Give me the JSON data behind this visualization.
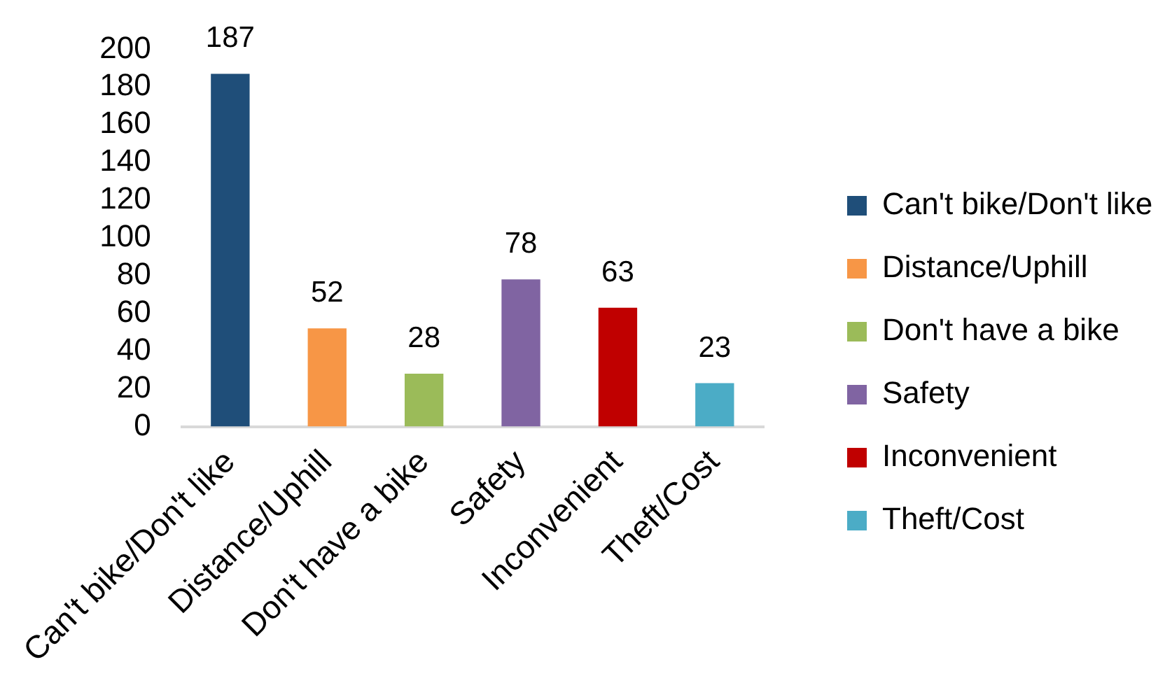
{
  "chart_data": {
    "type": "bar",
    "categories": [
      "Can't bike/Don't like",
      "Distance/Uphill",
      "Don't have a bike",
      "Safety",
      "Inconvenient",
      "Theft/Cost"
    ],
    "series": [
      {
        "name": "Can't bike/Don't like",
        "color": "#1f4e79",
        "values": [
          187,
          null,
          null,
          null,
          null,
          null
        ]
      },
      {
        "name": "Distance/Uphill",
        "color": "#f79646",
        "values": [
          null,
          52,
          null,
          null,
          null,
          null
        ]
      },
      {
        "name": "Don't have a bike",
        "color": "#9bbb59",
        "values": [
          null,
          null,
          28,
          null,
          null,
          null
        ]
      },
      {
        "name": "Safety",
        "color": "#8064a2",
        "values": [
          null,
          null,
          null,
          78,
          null,
          null
        ]
      },
      {
        "name": "Inconvenient",
        "color": "#c00000",
        "values": [
          null,
          null,
          null,
          null,
          63,
          null
        ]
      },
      {
        "name": "Theft/Cost",
        "color": "#4bacc6",
        "values": [
          null,
          null,
          null,
          null,
          null,
          23
        ]
      }
    ],
    "ylim": [
      0,
      200
    ],
    "yticks": [
      0,
      20,
      40,
      60,
      80,
      100,
      120,
      140,
      160,
      180,
      200
    ],
    "data_labels": true,
    "grid": false,
    "legend": "right"
  }
}
